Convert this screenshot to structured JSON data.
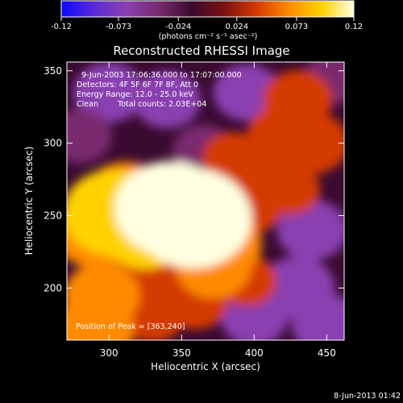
{
  "colors": {
    "background": "#000000",
    "text": "#ffffff",
    "colormap": [
      "#0a0aff",
      "#5a2ad6",
      "#8a3fb0",
      "#7a2a6e",
      "#3a0a30",
      "#7a1010",
      "#d43a00",
      "#ff8a00",
      "#ffd200",
      "#ffffe0"
    ]
  },
  "colorbar": {
    "ticks": [
      "-0.12",
      "-0.073",
      "-0.024",
      "0.024",
      "0.073",
      "0.12"
    ],
    "values": [
      -0.12,
      -0.073,
      -0.024,
      0.024,
      0.073,
      0.12
    ],
    "range": [
      -0.12,
      0.12
    ],
    "unit_label": "(photons cm⁻² s⁻¹ asec⁻²)"
  },
  "chart_data": {
    "type": "heatmap",
    "title": "Reconstructed RHESSI Image",
    "xlabel": "Heliocentric X (arcsec)",
    "ylabel": "Heliocentric Y (arcsec)",
    "xlim": [
      271,
      462
    ],
    "ylim": [
      164,
      356
    ],
    "x_ticks": [
      300,
      350,
      400,
      450
    ],
    "y_ticks": [
      200,
      250,
      300,
      350
    ],
    "value_range": [
      -0.12,
      0.12
    ],
    "peak_position": [
      363,
      240
    ],
    "sources": [
      {
        "x": 358,
        "y": 248,
        "value": 0.12
      },
      {
        "x": 342,
        "y": 255,
        "value": 0.11
      },
      {
        "x": 303,
        "y": 252,
        "value": 0.095
      },
      {
        "x": 325,
        "y": 240,
        "value": 0.08
      },
      {
        "x": 312,
        "y": 262,
        "value": 0.07
      },
      {
        "x": 290,
        "y": 238,
        "value": 0.065
      },
      {
        "x": 378,
        "y": 230,
        "value": 0.06
      },
      {
        "x": 395,
        "y": 258,
        "value": 0.05
      },
      {
        "x": 372,
        "y": 215,
        "value": 0.055
      },
      {
        "x": 345,
        "y": 215,
        "value": 0.045
      },
      {
        "x": 315,
        "y": 205,
        "value": 0.05
      },
      {
        "x": 295,
        "y": 195,
        "value": 0.055
      },
      {
        "x": 290,
        "y": 172,
        "value": 0.06
      },
      {
        "x": 330,
        "y": 182,
        "value": 0.04
      },
      {
        "x": 360,
        "y": 190,
        "value": 0.035
      },
      {
        "x": 395,
        "y": 205,
        "value": 0.03
      },
      {
        "x": 420,
        "y": 305,
        "value": 0.05
      },
      {
        "x": 440,
        "y": 300,
        "value": 0.05
      },
      {
        "x": 430,
        "y": 330,
        "value": 0.045
      },
      {
        "x": 410,
        "y": 285,
        "value": 0.04
      },
      {
        "x": 385,
        "y": 290,
        "value": 0.03
      },
      {
        "x": 425,
        "y": 268,
        "value": 0.03
      }
    ],
    "dips": [
      {
        "x": 300,
        "y": 335,
        "value": -0.07
      },
      {
        "x": 340,
        "y": 330,
        "value": -0.06
      },
      {
        "x": 280,
        "y": 305,
        "value": -0.05
      },
      {
        "x": 395,
        "y": 335,
        "value": -0.06
      },
      {
        "x": 440,
        "y": 240,
        "value": -0.07
      },
      {
        "x": 430,
        "y": 200,
        "value": -0.08
      },
      {
        "x": 450,
        "y": 175,
        "value": -0.07
      },
      {
        "x": 400,
        "y": 180,
        "value": -0.06
      },
      {
        "x": 365,
        "y": 295,
        "value": -0.04
      },
      {
        "x": 455,
        "y": 345,
        "value": -0.04
      }
    ],
    "annotations": {
      "time": "9-Jun-2003 17:06:36.000 to 17:07:00.000",
      "detectors": "Detectors: 4F 5F 6F 7F 8F, Att 0",
      "energy": "Energy Range: 12.0 - 25.0 keV",
      "method": "Clean",
      "counts": "Total counts: 2.03E+04",
      "peak": "Position of Peak = [363,240]"
    },
    "footer_date": "8-Jun-2013 01:42"
  }
}
